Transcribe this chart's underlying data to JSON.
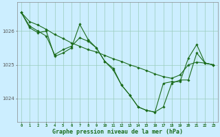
{
  "background_color": "#cceeff",
  "grid_color": "#99ccbb",
  "line_color": "#1a6b1a",
  "marker_color": "#1a6b1a",
  "xlabel": "Graphe pression niveau de la mer (hPa)",
  "xlabel_fontsize": 6.0,
  "xlabel_color": "#1a6b1a",
  "xlim": [
    -0.5,
    23.5
  ],
  "ylim": [
    1023.3,
    1026.85
  ],
  "yticks": [
    1024,
    1025,
    1026
  ],
  "xticks": [
    0,
    1,
    2,
    3,
    4,
    5,
    6,
    7,
    8,
    9,
    10,
    11,
    12,
    13,
    14,
    15,
    16,
    17,
    18,
    19,
    20,
    21,
    22,
    23
  ],
  "lines": [
    {
      "x": [
        0,
        1,
        2,
        3,
        4,
        5,
        6,
        7,
        8,
        9,
        10,
        11,
        12,
        13,
        14,
        15,
        16,
        17,
        18,
        19,
        20,
        21,
        22,
        23
      ],
      "y": [
        1026.55,
        1026.28,
        1026.18,
        1026.05,
        1025.9,
        1025.78,
        1025.65,
        1025.55,
        1025.45,
        1025.38,
        1025.28,
        1025.18,
        1025.1,
        1025.0,
        1024.92,
        1024.83,
        1024.73,
        1024.65,
        1024.6,
        1024.7,
        1025.0,
        1025.08,
        1025.05,
        1025.0
      ]
    },
    {
      "x": [
        0,
        1,
        2,
        3,
        4,
        5,
        6,
        7,
        8,
        9,
        10,
        11,
        12,
        13,
        14,
        15,
        16,
        17,
        18,
        19,
        20,
        21,
        22,
        23
      ],
      "y": [
        1026.55,
        1026.15,
        1026.0,
        1025.85,
        1025.3,
        1025.45,
        1025.55,
        1025.8,
        1025.7,
        1025.5,
        1025.1,
        1024.9,
        1024.4,
        1024.1,
        1023.75,
        1023.65,
        1023.6,
        1023.75,
        1024.45,
        1024.55,
        1024.55,
        1025.35,
        1025.05,
        1025.0
      ]
    },
    {
      "x": [
        0,
        1,
        2,
        3,
        4,
        5,
        6,
        7,
        8,
        9,
        10,
        11,
        12,
        13,
        14,
        15,
        16,
        17,
        18,
        19,
        20,
        21,
        22,
        23
      ],
      "y": [
        1026.55,
        1026.1,
        1025.95,
        1026.0,
        1025.25,
        1025.35,
        1025.5,
        1026.2,
        1025.75,
        1025.5,
        1025.1,
        1024.85,
        1024.4,
        1024.1,
        1023.75,
        1023.65,
        1023.6,
        1024.45,
        1024.5,
        1024.5,
        1025.2,
        1025.6,
        1025.05,
        1025.0
      ]
    }
  ]
}
